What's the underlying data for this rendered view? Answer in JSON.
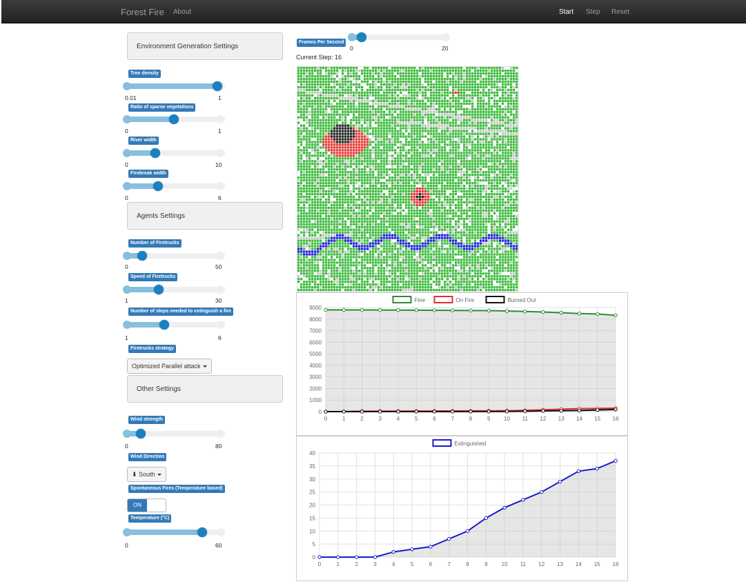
{
  "nav": {
    "brand": "Forest Fire",
    "about": "About",
    "start": "Start",
    "step": "Step",
    "reset": "Reset"
  },
  "fps": {
    "label": "Frames Per Second",
    "min": "0",
    "max": "20",
    "value": 2
  },
  "current_step": "Current Step: 16",
  "sections": {
    "environment": "Environment Generation Settings",
    "agents": "Agents Settings",
    "other": "Other Settings"
  },
  "sliders": [
    {
      "key": "tree_density",
      "label": "Tree density",
      "min": "0.01",
      "max": "1",
      "fraction": 0.96
    },
    {
      "key": "sparse",
      "label": "Ratio of sparse vegetations",
      "min": "0",
      "max": "1",
      "fraction": 0.5
    },
    {
      "key": "river",
      "label": "River width",
      "min": "0",
      "max": "10",
      "fraction": 0.3
    },
    {
      "key": "firebreak",
      "label": "Firebreak width",
      "min": "0",
      "max": "6",
      "fraction": 0.33
    },
    {
      "key": "firetrucks",
      "label": "Number of Firetrucks",
      "min": "0",
      "max": "50",
      "fraction": 0.16
    },
    {
      "key": "speed",
      "label": "Speed of Firetrucks",
      "min": "1",
      "max": "30",
      "fraction": 0.34
    },
    {
      "key": "steps",
      "label": "Number of steps needed to extinguish a fire",
      "min": "1",
      "max": "6",
      "fraction": 0.4
    },
    {
      "key": "wind",
      "label": "Wind strength",
      "min": "0",
      "max": "80",
      "fraction": 0.15
    },
    {
      "key": "temperature",
      "label": "Temperature (°C)",
      "min": "0",
      "max": "60",
      "fraction": 0.8
    }
  ],
  "strategy": {
    "label": "Firetrucks strategy",
    "value": "Optimized Parallel attack"
  },
  "wind_direction": {
    "label": "Wind Direction",
    "value": "South",
    "icon": "arrow-down-icon"
  },
  "spontaneous": {
    "label": "Spontaneous Fires (Temperature based)",
    "state": "ON"
  },
  "colors": {
    "fine": "#2e8b2e",
    "on_fire": "#e0302c",
    "burned": "#111111",
    "extinguished": "#1a1acc",
    "accent": "#337ab7"
  },
  "chart_data": [
    {
      "type": "line",
      "x": [
        0,
        1,
        2,
        3,
        4,
        5,
        6,
        7,
        8,
        9,
        10,
        11,
        12,
        13,
        14,
        15,
        16
      ],
      "series": [
        {
          "name": "Fine",
          "values": [
            8800,
            8795,
            8790,
            8785,
            8780,
            8770,
            8760,
            8750,
            8740,
            8730,
            8700,
            8660,
            8610,
            8550,
            8480,
            8440,
            8330
          ]
        },
        {
          "name": "On Fire",
          "values": [
            0,
            10,
            40,
            45,
            45,
            50,
            55,
            60,
            65,
            70,
            75,
            110,
            160,
            210,
            260,
            275,
            300
          ]
        },
        {
          "name": "Burned Out",
          "values": [
            0,
            0,
            0,
            0,
            0,
            0,
            0,
            0,
            5,
            10,
            15,
            30,
            60,
            80,
            100,
            140,
            190
          ]
        }
      ],
      "ylim": [
        0,
        9000
      ],
      "yticks": [
        0,
        1000,
        2000,
        3000,
        4000,
        5000,
        6000,
        7000,
        8000,
        9000
      ],
      "grid": true,
      "legend": "top"
    },
    {
      "type": "area",
      "x": [
        0,
        1,
        2,
        3,
        4,
        5,
        6,
        7,
        8,
        9,
        10,
        11,
        12,
        13,
        14,
        15,
        16
      ],
      "series": [
        {
          "name": "Extinguished",
          "values": [
            0,
            0,
            0,
            0,
            2,
            3,
            4,
            7,
            10,
            15,
            19,
            22,
            25,
            29,
            33,
            34,
            37
          ]
        }
      ],
      "ylim": [
        0,
        40
      ],
      "yticks": [
        0,
        5,
        10,
        15,
        20,
        25,
        30,
        35,
        40
      ],
      "grid": true,
      "legend": "top"
    }
  ]
}
